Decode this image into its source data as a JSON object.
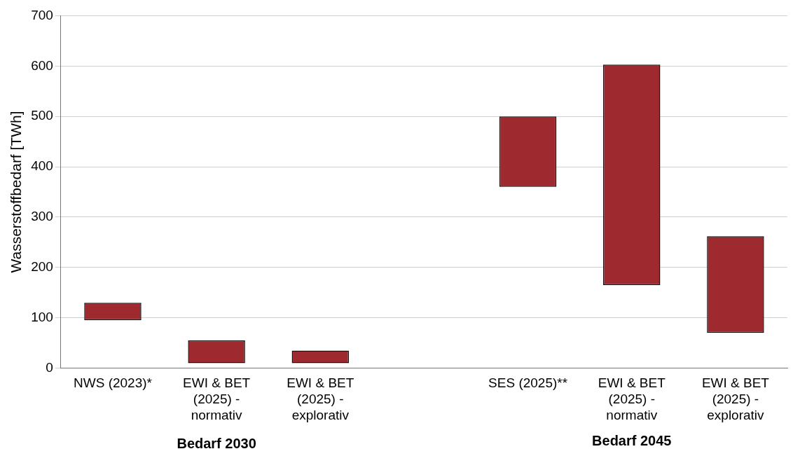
{
  "chart_data": {
    "type": "bar",
    "ylabel": "Wasserstoffbedarf [TWh]",
    "categories": [
      "NWS (2023)*",
      "EWI & BET (2025) - normativ",
      "EWI & BET (2025) - explorativ",
      null,
      "SES (2025)**",
      "EWI & BET (2025) - normativ",
      "EWI & BET (2025) - explorativ"
    ],
    "base": [
      95,
      10,
      10,
      null,
      360,
      165,
      70
    ],
    "values": [
      35,
      45,
      25,
      null,
      140,
      438,
      192
    ],
    "color": "#9e2a2f",
    "ylim": [
      0,
      700
    ],
    "yticks": [
      0,
      100,
      200,
      300,
      400,
      500,
      600,
      700
    ],
    "grid": "y",
    "legend": false,
    "annotations": [
      "Bedarf 2030",
      "Bedarf 2045"
    ]
  }
}
